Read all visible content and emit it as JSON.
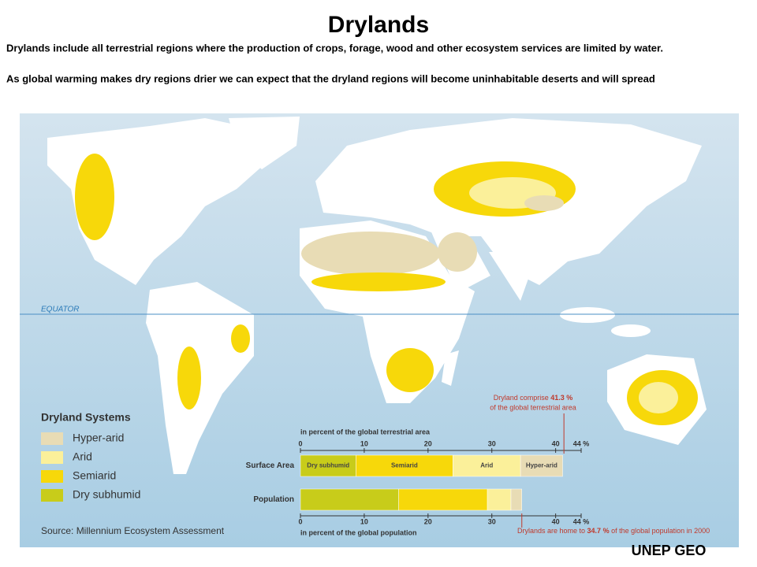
{
  "header": {
    "title": "Drylands",
    "paragraphs": [
      "Drylands include all terrestrial regions where the production of crops, forage, wood and other ecosystem services are limited by water.",
      "As global warming makes dry regions drier we can expect that the dryland regions will become uninhabitable deserts and will spread"
    ]
  },
  "map": {
    "equator_label": "EQUATOR",
    "legend": {
      "title": "Dryland Systems",
      "items": [
        {
          "label": "Hyper-arid",
          "color": "#e8dcb5"
        },
        {
          "label": "Arid",
          "color": "#fbf09a"
        },
        {
          "label": "Semiarid",
          "color": "#f7d80a"
        },
        {
          "label": "Dry subhumid",
          "color": "#c8cc1a"
        }
      ]
    },
    "source": "Source: Millennium Ecosystem Assessment"
  },
  "chart_data": {
    "type": "stacked-bar",
    "orientation": "horizontal",
    "categories": [
      "Surface Area",
      "Population"
    ],
    "series": [
      {
        "name": "Dry subhumid",
        "color": "#c8cc1a",
        "values": [
          8.7,
          15.4
        ]
      },
      {
        "name": "Semiarid",
        "color": "#f7d80a",
        "values": [
          15.2,
          13.9
        ]
      },
      {
        "name": "Arid",
        "color": "#fbf09a",
        "values": [
          10.6,
          3.7
        ]
      },
      {
        "name": "Hyper-arid",
        "color": "#e8dcb5",
        "values": [
          6.6,
          1.7
        ]
      }
    ],
    "xlim": [
      0,
      44
    ],
    "xticks": [
      0,
      10,
      20,
      30,
      40,
      {
        "value": 44,
        "label": "44 %"
      }
    ],
    "top_axis_label": "in percent of the global terrestrial area",
    "bottom_axis_label": "in percent of the global population",
    "annotations": [
      {
        "value": 41.3,
        "text_before": "Dryland comprise ",
        "value_label": "41.3 %",
        "text_after": "of the global terrestrial area"
      },
      {
        "value": 34.7,
        "text_before": "Drylands are home to ",
        "value_label": "34.7 %",
        "text_after": " of the global population in 2000"
      }
    ]
  },
  "footer": {
    "credit": "UNEP GEO"
  }
}
